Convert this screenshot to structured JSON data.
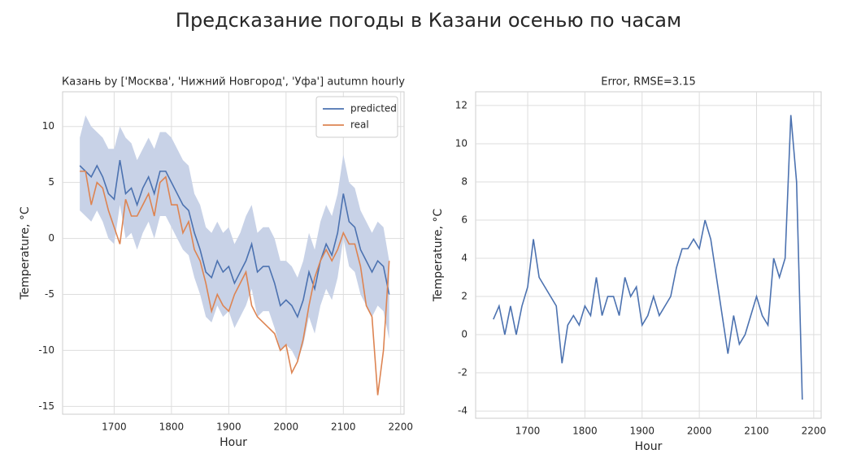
{
  "title": "Предсказание погоды в Казани осенью по часам",
  "chart_data": [
    {
      "type": "line",
      "title": "Казань by ['Москва', 'Нижний Новгород', 'Уфа'] autumn hourly",
      "xlabel": "Hour",
      "ylabel": "Temperature, °C",
      "xlim": [
        1610,
        2206
      ],
      "ylim": [
        -15.7,
        13.1
      ],
      "xticks": [
        1700,
        1800,
        1900,
        2000,
        2100,
        2200
      ],
      "yticks": [
        -15,
        -10,
        -5,
        0,
        5,
        10
      ],
      "grid": true,
      "legend": "upper right",
      "x": [
        1640,
        1650,
        1660,
        1670,
        1680,
        1690,
        1700,
        1710,
        1720,
        1730,
        1740,
        1750,
        1760,
        1770,
        1780,
        1790,
        1800,
        1810,
        1820,
        1830,
        1840,
        1850,
        1860,
        1870,
        1880,
        1890,
        1900,
        1910,
        1920,
        1930,
        1940,
        1950,
        1960,
        1970,
        1980,
        1990,
        2000,
        2010,
        2020,
        2030,
        2040,
        2050,
        2060,
        2070,
        2080,
        2090,
        2100,
        2110,
        2120,
        2130,
        2140,
        2150,
        2160,
        2170,
        2180
      ],
      "band": {
        "color": "#c8d2e7",
        "upper": [
          9,
          11,
          10,
          9.5,
          9,
          8,
          8,
          10,
          9,
          8.5,
          7,
          8,
          9,
          8,
          9.5,
          9.5,
          9,
          8,
          7,
          6.5,
          4,
          3,
          1,
          0.5,
          1.5,
          0.5,
          1,
          -0.5,
          0.5,
          2,
          3,
          0.5,
          1,
          1,
          0,
          -2,
          -2,
          -2.5,
          -3.5,
          -2,
          0.5,
          -1,
          1.5,
          3,
          2,
          4,
          7.5,
          5,
          4.5,
          2.5,
          1.5,
          0.5,
          1.5,
          1,
          -2
        ],
        "lower": [
          2.5,
          2,
          1.5,
          2.5,
          1.5,
          0,
          -0.5,
          3,
          0,
          0.5,
          -1,
          0.5,
          1.5,
          0,
          2,
          2,
          1,
          0,
          -1,
          -1.5,
          -3.5,
          -5,
          -7,
          -7.5,
          -6,
          -7,
          -6.5,
          -8,
          -7,
          -6,
          -4.5,
          -7,
          -6.5,
          -6.5,
          -8,
          -10,
          -9.5,
          -10,
          -11,
          -9.5,
          -7,
          -8.5,
          -6,
          -4.5,
          -5.5,
          -3.5,
          0,
          -2.5,
          -3,
          -5,
          -6,
          -7,
          -6,
          -6.5,
          -9
        ]
      },
      "series": [
        {
          "name": "predicted",
          "color": "#4c72b0",
          "values": [
            6.5,
            6,
            5.5,
            6.5,
            5.5,
            4,
            3.5,
            7,
            4,
            4.5,
            3,
            4.5,
            5.5,
            4,
            6,
            6,
            5,
            4,
            3,
            2.5,
            0.5,
            -1,
            -3,
            -3.5,
            -2,
            -3,
            -2.5,
            -4,
            -3,
            -2,
            -0.5,
            -3,
            -2.5,
            -2.5,
            -4,
            -6,
            -5.5,
            -6,
            -7,
            -5.5,
            -3,
            -4.5,
            -2,
            -0.5,
            -1.5,
            0.5,
            4,
            1.5,
            1,
            -1,
            -2,
            -3,
            -2,
            -2.5,
            -5
          ]
        },
        {
          "name": "real",
          "color": "#dd8452",
          "values": [
            6,
            6,
            3,
            5,
            4.5,
            2.5,
            1,
            -0.5,
            3.5,
            2,
            2,
            3,
            4,
            2,
            5,
            5.5,
            3,
            3,
            0.5,
            1.5,
            -1,
            -2,
            -4,
            -6.5,
            -5,
            -6,
            -6.5,
            -5,
            -4,
            -3,
            -6,
            -7,
            -7.5,
            -8,
            -8.5,
            -10,
            -9.5,
            -12,
            -11,
            -9,
            -6,
            -3.5,
            -2,
            -1,
            -2,
            -1,
            0.5,
            -0.5,
            -0.5,
            -2.5,
            -6,
            -7,
            -14,
            -10,
            -2
          ]
        }
      ]
    },
    {
      "type": "line",
      "title": "Error, RMSE=3.15",
      "xlabel": "Hour",
      "ylabel": "Temperature, °C",
      "xlim": [
        1609,
        2213
      ],
      "ylim": [
        -4.38,
        12.72
      ],
      "xticks": [
        1700,
        1800,
        1900,
        2000,
        2100,
        2200
      ],
      "yticks": [
        -4,
        -2,
        0,
        2,
        4,
        6,
        8,
        10,
        12
      ],
      "grid": true,
      "x": [
        1640,
        1650,
        1660,
        1670,
        1680,
        1690,
        1700,
        1710,
        1720,
        1730,
        1740,
        1750,
        1760,
        1770,
        1780,
        1790,
        1800,
        1810,
        1820,
        1830,
        1840,
        1850,
        1860,
        1870,
        1880,
        1890,
        1900,
        1910,
        1920,
        1930,
        1940,
        1950,
        1960,
        1970,
        1980,
        1990,
        2000,
        2010,
        2020,
        2030,
        2040,
        2050,
        2060,
        2070,
        2080,
        2090,
        2100,
        2110,
        2120,
        2130,
        2140,
        2150,
        2160,
        2170,
        2180
      ],
      "series": [
        {
          "color": "#4c72b0",
          "values": [
            0.8,
            1.5,
            0,
            1.5,
            0,
            1.5,
            2.5,
            5,
            3,
            2.5,
            2,
            1.5,
            -1.5,
            0.5,
            1,
            0.5,
            1.5,
            1,
            3,
            1,
            2,
            2,
            1,
            3,
            2,
            2.5,
            0.5,
            1,
            2,
            1,
            1.5,
            2,
            3.5,
            4.5,
            4.5,
            5,
            4.5,
            6,
            5,
            3,
            1,
            -1,
            1,
            -0.5,
            0,
            1,
            2,
            1,
            0.5,
            4,
            3,
            4,
            11.5,
            8,
            -3.4
          ]
        }
      ]
    }
  ]
}
